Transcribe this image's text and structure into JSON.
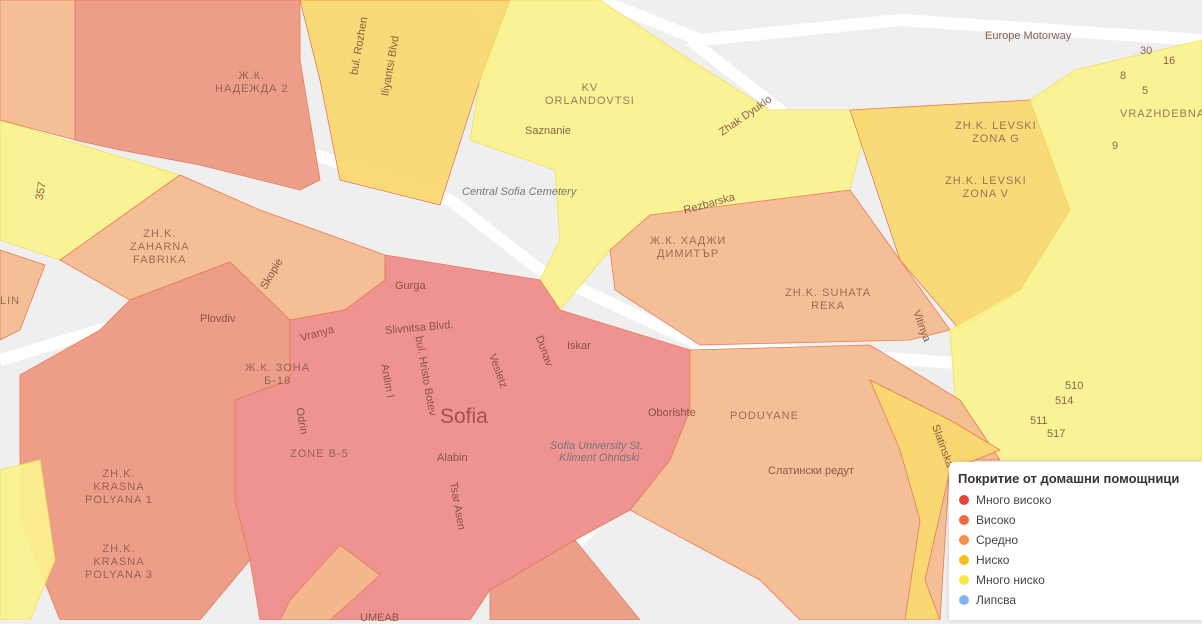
{
  "legend": {
    "title": "Покритие от домашни помощници",
    "items": [
      {
        "label": "Много високо",
        "color": "#e8413c"
      },
      {
        "label": "Високо",
        "color": "#ee6a3f"
      },
      {
        "label": "Средно",
        "color": "#f39048"
      },
      {
        "label": "Ниско",
        "color": "#f6c21a"
      },
      {
        "label": "Много ниско",
        "color": "#fbe93c"
      },
      {
        "label": "Липсва",
        "color": "#82b4f5"
      }
    ]
  },
  "fills": {
    "very_high": "#ee8b8a",
    "high": "#eb9780",
    "medium": "#f4bb8e",
    "low": "#f8d96e",
    "very_low": "#fbf38e"
  },
  "map_labels": {
    "city": "Sofia",
    "districts": [
      "Ж.К. НАДЕЖДА 2",
      "KV ORLANDOVTSI",
      "ZH.K. LEVSKI ZONA G",
      "ZH.K. LEVSKI ZONA V",
      "VRAZHDEBNA",
      "ZH.K. ZAHARNA FABRIKA",
      "Ж.К. ХАДЖИ ДИМИТЪР",
      "ZH.K. SUHATA REKA",
      "Ж.К. ЗОНА Б-18",
      "ZONE B-5",
      "PODUYANE",
      "ZH.K. KRASNA POLYANA 1",
      "ZH.K. KRASNA POLYANA 3",
      "LIN"
    ],
    "streets": [
      "bul. Rozhen",
      "Iliyantsi Blvd",
      "Europe Motorway",
      "Zhak Dyuklo",
      "Saznanie",
      "Rezbarska",
      "Skopie",
      "Plovdiv",
      "Vranya",
      "Slivnitsa Blvd.",
      "Gurga",
      "bul. Hristo Botev",
      "Antim I",
      "Vesletz",
      "Dunav",
      "Iskar",
      "Odrin",
      "Alabin",
      "Tsar Asen",
      "Oborishte",
      "Slatinska",
      "Слатински редут",
      "Vitinya",
      "357",
      "UMEAB"
    ],
    "landmarks": [
      "Central Sofia Cemetery",
      "Sofia University St. Kliment Ohridski"
    ],
    "numbers": [
      "30",
      "16",
      "8",
      "5",
      "9",
      "510",
      "514",
      "511",
      "517"
    ]
  }
}
